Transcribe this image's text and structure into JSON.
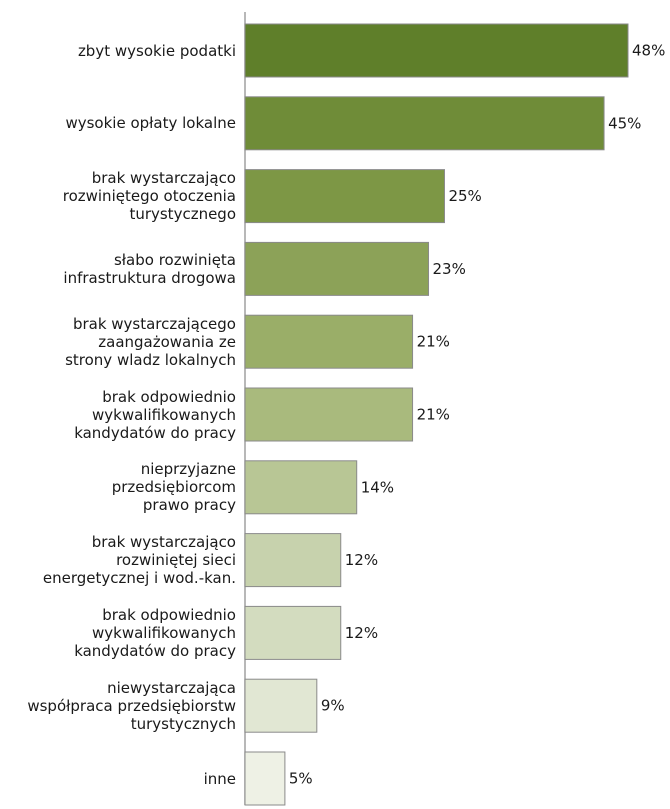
{
  "chart_data": {
    "type": "bar",
    "orientation": "horizontal",
    "categories": [
      "zbyt wysokie podatki",
      "wysokie opłaty lokalne",
      "brak wystarczająco rozwiniętego otoczenia turystycznego",
      "słabo rozwinięta infrastruktura drogowa",
      "brak wystarczającego zaangażowania ze strony wladz lokalnych",
      "brak odpowiednio wykwalifikowanych kandydatów do pracy",
      "nieprzyjazne przedsiębiorcom prawo pracy",
      "brak wystarczająco rozwiniętej sieci energetycznej i wod.-kan.",
      "brak odpowiednio wykwalifikowanych kandydatów do pracy",
      "niewystarczająca współpraca przedsiębiorstw turystycznych",
      "inne"
    ],
    "category_lines": [
      [
        "zbyt wysokie podatki"
      ],
      [
        "wysokie opłaty lokalne"
      ],
      [
        "brak wystarczająco",
        "rozwiniętego otoczenia",
        "turystycznego"
      ],
      [
        "słabo rozwinięta",
        "infrastruktura drogowa"
      ],
      [
        "brak wystarczającego",
        "zaangażowania ze",
        "strony wladz lokalnych"
      ],
      [
        "brak odpowiednio",
        "wykwalifikowanych",
        "kandydatów do pracy"
      ],
      [
        "nieprzyjazne",
        "przedsiębiorcom",
        "prawo pracy"
      ],
      [
        "brak wystarczająco",
        "rozwiniętej sieci",
        "energetycznej i wod.-kan."
      ],
      [
        "brak odpowiednio",
        "wykwalifikowanych",
        "kandydatów do pracy"
      ],
      [
        "niewystarczająca",
        "współpraca przedsiębiorstw",
        "turystycznych"
      ],
      [
        "inne"
      ]
    ],
    "values": [
      48,
      45,
      25,
      23,
      21,
      21,
      14,
      12,
      12,
      9,
      5
    ],
    "value_labels": [
      "48%",
      "45%",
      "25%",
      "23%",
      "21%",
      "21%",
      "14%",
      "12%",
      "12%",
      "9%",
      "5%"
    ],
    "bar_colors": [
      "#5f7f2a",
      "#6f8c38",
      "#7d9745",
      "#8ca258",
      "#9aae68",
      "#a9ba7d",
      "#b8c695",
      "#c7d2ad",
      "#d3dcbf",
      "#e1e7d3",
      "#eef1e5"
    ],
    "bar_border_color": "#8a8a8a",
    "axis_color": "#a0a0a0",
    "xlim": [
      0,
      48
    ],
    "title": "",
    "xlabel": "",
    "ylabel": "",
    "grid": false,
    "legend": "none"
  }
}
